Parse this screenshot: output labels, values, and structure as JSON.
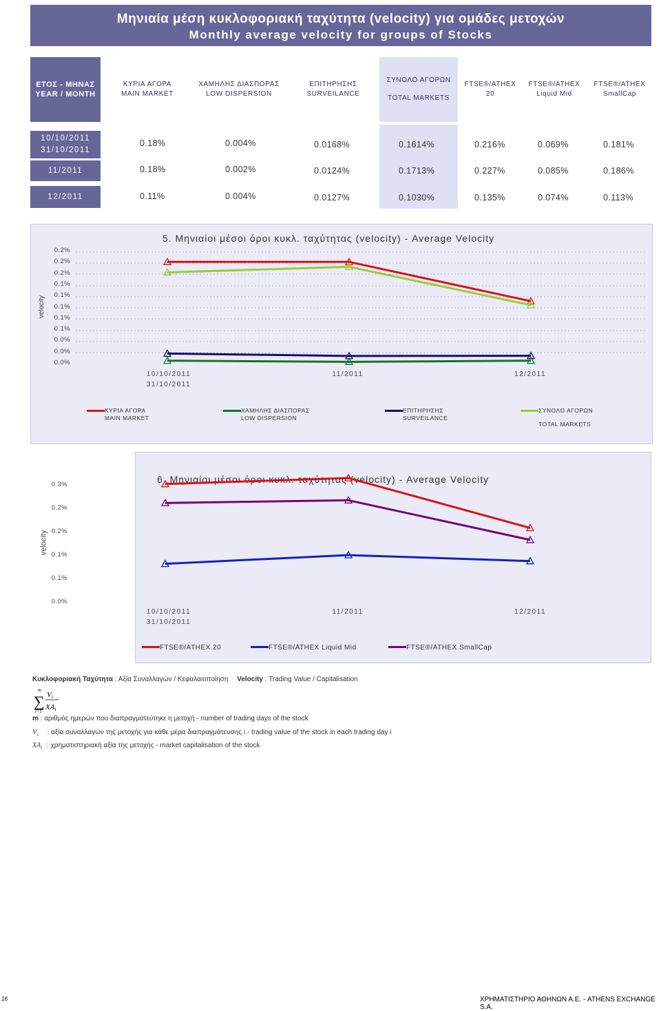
{
  "title": {
    "greek": "Μηνιαία μέση κυκλοφοριακή ταχύτητα (velocity) για ομάδες μετοχών",
    "english": "Monthly average velocity for groups of Stocks"
  },
  "table": {
    "year_header": [
      "ΕΤΟΣ - ΜΗΝΑΣ",
      "YEAR / MONTH"
    ],
    "columns": [
      [
        "ΚΥΡΙΑ ΑΓΟΡΑ",
        "MAIN MARKET"
      ],
      [
        "ΧΑΜΗΛΗΣ ΔΙΑΣΠΟΡΑΣ",
        "LOW DISPERSION"
      ],
      [
        "ΕΠΙΤΗΡΗΣΗΣ",
        "SURVEILANCE"
      ],
      [
        "ΣΥΝΟΛΟ ΑΓΟΡΩΝ",
        "TOTAL MARKETS"
      ],
      [
        "FTSE®/ATHEX",
        "20"
      ],
      [
        "FTSE®/ATHEX",
        "Liquid Mid"
      ],
      [
        "FTSE®/ATHEX",
        "SmallCap"
      ]
    ],
    "rows": [
      {
        "period": [
          "10/10/2011",
          "31/10/2011"
        ],
        "values": [
          "0.18%",
          "0.004%",
          "0.0168%",
          "0.1614%",
          "0.216%",
          "0.069%",
          "0.181%"
        ]
      },
      {
        "period": [
          "11/2011"
        ],
        "values": [
          "0.18%",
          "0.002%",
          "0.0124%",
          "0.1713%",
          "0.227%",
          "0.085%",
          "0.186%"
        ]
      },
      {
        "period": [
          "12/2011"
        ],
        "values": [
          "0.11%",
          "0.004%",
          "0.0127%",
          "0.1030%",
          "0.135%",
          "0.074%",
          "0.113%"
        ]
      }
    ]
  },
  "chart_data": [
    {
      "type": "line",
      "title": "5. Μηνιαίοι μέσοι όροι κυκλ. ταχύτητας (velocity) - Average Velocity",
      "ylabel": "velocity",
      "ylim": [
        0,
        0.2
      ],
      "ytick_labels": [
        "0.2%",
        "0.2%",
        "0.2%",
        "0.1%",
        "0.1%",
        "0.1%",
        "0.1%",
        "0.1%",
        "0.0%",
        "0.0%",
        "0.0%"
      ],
      "categories": [
        "10/10/2011 31/10/2011",
        "11/2011",
        "12/2011"
      ],
      "series": [
        {
          "name": "ΚΥΡΙΑ ΑΓΟΡΑ MAIN MARKET",
          "color": "#dd1111",
          "values": [
            0.18,
            0.18,
            0.11
          ]
        },
        {
          "name": "ΧΑΜΗΛΗΣ ΔΙΑΣΠΟΡΑΣ LOW DISPERSION",
          "color": "#117722",
          "values": [
            0.004,
            0.002,
            0.004
          ]
        },
        {
          "name": "ΕΠΙΤΗΡΗΣΗΣ SURVEILANCE",
          "color": "#111166",
          "values": [
            0.0168,
            0.0124,
            0.0127
          ]
        },
        {
          "name": "ΣΥΝΟΛΟ ΑΓΟΡΩΝ TOTAL MARKETS",
          "color": "#99cc33",
          "values": [
            0.1614,
            0.1713,
            0.103
          ]
        }
      ]
    },
    {
      "type": "line",
      "title": "6. Μηνιαίοι μέσοι όροι κυκλ. ταχύτητας (velocity) - Average Velocity",
      "ylabel": "velocity",
      "ylim": [
        0,
        0.25
      ],
      "ytick_labels": [
        "0.3%",
        "0.2%",
        "0.2%",
        "0.1%",
        "0.1%",
        "0.0%"
      ],
      "categories": [
        "10/10/2011 31/10/2011",
        "11/2011",
        "12/2011"
      ],
      "series": [
        {
          "name": "FTSE®/ATHEX 20",
          "color": "#dd1111",
          "values": [
            0.216,
            0.227,
            0.135
          ]
        },
        {
          "name": "FTSE®/ATHEX Liquid Mid",
          "color": "#1122bb",
          "values": [
            0.069,
            0.085,
            0.074
          ]
        },
        {
          "name": "FTSE®/ATHEX SmallCap",
          "color": "#770077",
          "values": [
            0.181,
            0.186,
            0.113
          ]
        }
      ]
    }
  ],
  "legend1": [
    [
      "ΚΥΡΙΑ ΑΓΟΡΑ",
      "MAIN MARKET"
    ],
    [
      "ΧΑΜΗΛΗΣ ΔΙΑΣΠΟΡΑΣ",
      "LOW DISPERSION"
    ],
    [
      "ΕΠΙΤΗΡΗΣΗΣ",
      "SURVEILANCE"
    ],
    [
      "ΣΥΝΟΛΟ ΑΓΟΡΩΝ",
      "",
      "TOTAL MARKETS"
    ]
  ],
  "legend2": [
    "FTSE®/ATHEX 20",
    "FTSE®/ATHEX Liquid Mid",
    "FTSE®/ATHEX SmallCap"
  ],
  "notes": {
    "definition_gr_label": "Κυκλοφοριακή Ταχύτητα",
    "definition_gr_text": ": Αξία Συναλλαγών / Κεφαλαιοποίηση",
    "definition_en_label": "Velocity",
    "definition_en_text": ": Trading Value / Capitalisation",
    "m_label": "m",
    "m_text": ": αριθμός ημερών που διαπραγματεύτηκε η μετοχή - number of trading days of the stock",
    "v_text": ": αξία συναλλαγών της μετοχής για κάθε μέρα διαπραγμάτευσης i - trading value of the stock in each trading day i",
    "xa_text": ": χρηματιστηριακή αξία της μετοχής - market capitalisation of the stock"
  },
  "footer": {
    "page": "16",
    "company": "ΧΡΗΜΑΤΙΣΤΗΡΙΟ ΑΘΗΝΩΝ Α.Ε. - ATHENS EXCHANGE S.A."
  }
}
